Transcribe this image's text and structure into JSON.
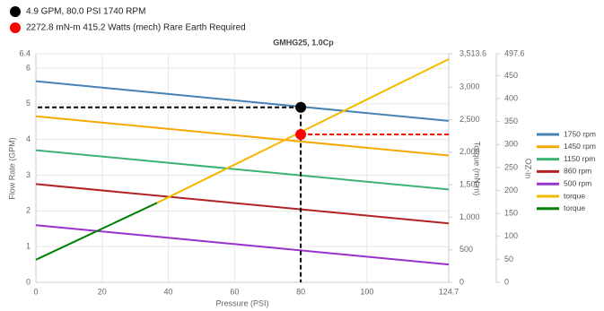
{
  "chart_data": {
    "type": "line",
    "title": "GMHG25, 1.0Cp",
    "annotations": [
      {
        "text": "4.9 GPM, 80.0 PSI 1740 RPM",
        "color": "#000000"
      },
      {
        "text": "2272.8 mN-m 415.2 Watts (mech) Rare Earth Required",
        "color": "#ff0000"
      }
    ],
    "xlabel": "Pressure (PSI)",
    "ylabel": "Flow Rate (GPM)",
    "y2label": "Torque (mN-m)",
    "y3label": "OZ-in",
    "xlim": [
      0,
      124.7
    ],
    "xticks": [
      0,
      20,
      40,
      60,
      80,
      100,
      124.7
    ],
    "ylim": [
      0,
      6.4
    ],
    "yticks": [
      0,
      1,
      2,
      3,
      4,
      5,
      6,
      6.4
    ],
    "y2lim": [
      0,
      3513.6
    ],
    "y2ticks": [
      0,
      500,
      {
        "value": 1000,
        "label": "1,000"
      },
      {
        "value": 1500,
        "label": "1,500"
      },
      {
        "value": 2000,
        "label": "2,000"
      },
      {
        "value": 2500,
        "label": "2,500"
      },
      {
        "value": 3000,
        "label": "3,000"
      },
      {
        "value": 3513.6,
        "label": "3,513.6"
      }
    ],
    "y3lim": [
      0,
      497.6
    ],
    "y3ticks": [
      0,
      50,
      100,
      150,
      200,
      250,
      300,
      350,
      400,
      450,
      497.6
    ],
    "grid": true,
    "series": [
      {
        "name": "1750 rpm",
        "color": "#4682b4",
        "x": [
          0,
          124.7
        ],
        "values": [
          5.63,
          4.52
        ]
      },
      {
        "name": "1450 rpm",
        "color": "#f5a800",
        "x": [
          0,
          124.7
        ],
        "values": [
          4.65,
          3.55
        ]
      },
      {
        "name": "1150 rpm",
        "color": "#3cb371",
        "x": [
          0,
          124.7
        ],
        "values": [
          3.7,
          2.6
        ]
      },
      {
        "name": "860 rpm",
        "color": "#b22222",
        "x": [
          0,
          124.7
        ],
        "values": [
          2.75,
          1.65
        ]
      },
      {
        "name": "500 rpm",
        "color": "#9932cc",
        "x": [
          0,
          124.7
        ],
        "values": [
          1.6,
          0.5
        ]
      },
      {
        "name": "torque",
        "color": "#f5b800",
        "axis": "y2",
        "x": [
          36.6,
          124.7
        ],
        "values": [
          1222,
          3431
        ]
      },
      {
        "name": "torque",
        "color": "#008000",
        "axis": "y2",
        "x": [
          0,
          36.6
        ],
        "values": [
          347,
          1222
        ]
      }
    ],
    "markers": [
      {
        "x": 80,
        "y": 4.9,
        "color": "#000000",
        "to": 0
      },
      {
        "x": 80,
        "y": 2272.8,
        "axis": "y2",
        "color": "#ff0000",
        "to": 124.7
      }
    ]
  }
}
